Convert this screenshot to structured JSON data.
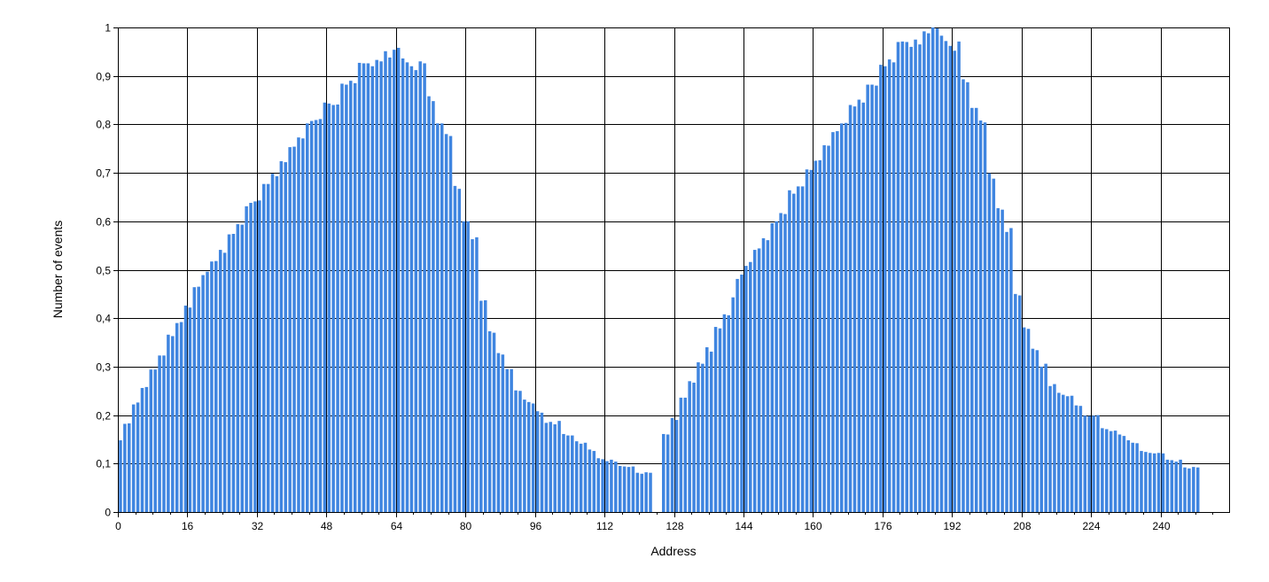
{
  "chart_data": {
    "type": "bar",
    "title": "",
    "xlabel": "Address",
    "ylabel": "Number of events",
    "xlim": [
      0,
      256
    ],
    "ylim": [
      0,
      1
    ],
    "grid": true,
    "bar_color": "#3f85e0",
    "x_ticks": [
      "0",
      "16",
      "32",
      "48",
      "64",
      "80",
      "96",
      "112",
      "128",
      "144",
      "160",
      "176",
      "192",
      "208",
      "224",
      "240"
    ],
    "y_ticks": [
      "0",
      "0,1",
      "0,2",
      "0,3",
      "0,4",
      "0,5",
      "0,6",
      "0,7",
      "0,8",
      "0,9",
      "1"
    ],
    "series": [
      {
        "values": [
          0.148,
          0.182,
          0.183,
          0.222,
          0.226,
          0.256,
          0.258,
          0.294,
          0.294,
          0.323,
          0.323,
          0.366,
          0.363,
          0.39,
          0.392,
          0.426,
          0.422,
          0.464,
          0.465,
          0.489,
          0.496,
          0.517,
          0.518,
          0.541,
          0.535,
          0.573,
          0.574,
          0.594,
          0.593,
          0.631,
          0.638,
          0.641,
          0.643,
          0.677,
          0.677,
          0.698,
          0.693,
          0.724,
          0.722,
          0.753,
          0.754,
          0.773,
          0.771,
          0.802,
          0.807,
          0.809,
          0.811,
          0.845,
          0.843,
          0.84,
          0.841,
          0.884,
          0.882,
          0.89,
          0.885,
          0.927,
          0.926,
          0.926,
          0.92,
          0.933,
          0.93,
          0.951,
          0.938,
          0.954,
          0.958,
          0.936,
          0.928,
          0.92,
          0.912,
          0.93,
          0.926,
          0.858,
          0.848,
          0.802,
          0.802,
          0.78,
          0.776,
          0.673,
          0.667,
          0.6,
          0.6,
          0.563,
          0.567,
          0.436,
          0.437,
          0.373,
          0.37,
          0.328,
          0.325,
          0.295,
          0.295,
          0.251,
          0.25,
          0.232,
          0.227,
          0.224,
          0.208,
          0.205,
          0.184,
          0.186,
          0.181,
          0.188,
          0.161,
          0.158,
          0.158,
          0.146,
          0.141,
          0.143,
          0.129,
          0.126,
          0.111,
          0.109,
          0.105,
          0.108,
          0.104,
          0.095,
          0.094,
          0.093,
          0.094,
          0.081,
          0.079,
          0.082,
          0.081,
          0,
          0,
          0.161,
          0.16,
          0.194,
          0.19,
          0.236,
          0.236,
          0.27,
          0.267,
          0.309,
          0.306,
          0.34,
          0.331,
          0.382,
          0.379,
          0.408,
          0.406,
          0.443,
          0.481,
          0.49,
          0.508,
          0.516,
          0.541,
          0.544,
          0.565,
          0.561,
          0.596,
          0.6,
          0.617,
          0.615,
          0.664,
          0.657,
          0.672,
          0.672,
          0.707,
          0.706,
          0.725,
          0.726,
          0.757,
          0.756,
          0.784,
          0.786,
          0.802,
          0.803,
          0.84,
          0.837,
          0.851,
          0.845,
          0.882,
          0.882,
          0.88,
          0.923,
          0.92,
          0.934,
          0.928,
          0.97,
          0.971,
          0.97,
          0.96,
          0.975,
          0.965,
          0.992,
          0.988,
          1.0,
          0.998,
          0.983,
          0.972,
          0.962,
          0.952,
          0.971,
          0.893,
          0.887,
          0.834,
          0.834,
          0.808,
          0.804,
          0.699,
          0.688,
          0.627,
          0.624,
          0.578,
          0.586,
          0.45,
          0.447,
          0.381,
          0.378,
          0.337,
          0.334,
          0.3,
          0.306,
          0.26,
          0.264,
          0.246,
          0.242,
          0.239,
          0.24,
          0.22,
          0.219,
          0.199,
          0.198,
          0.199,
          0.2,
          0.173,
          0.171,
          0.167,
          0.168,
          0.16,
          0.157,
          0.148,
          0.143,
          0.142,
          0.126,
          0.124,
          0.122,
          0.121,
          0.122,
          0.121,
          0.108,
          0.107,
          0.104,
          0.108,
          0.092,
          0.09,
          0.093,
          0.092
        ]
      }
    ]
  }
}
